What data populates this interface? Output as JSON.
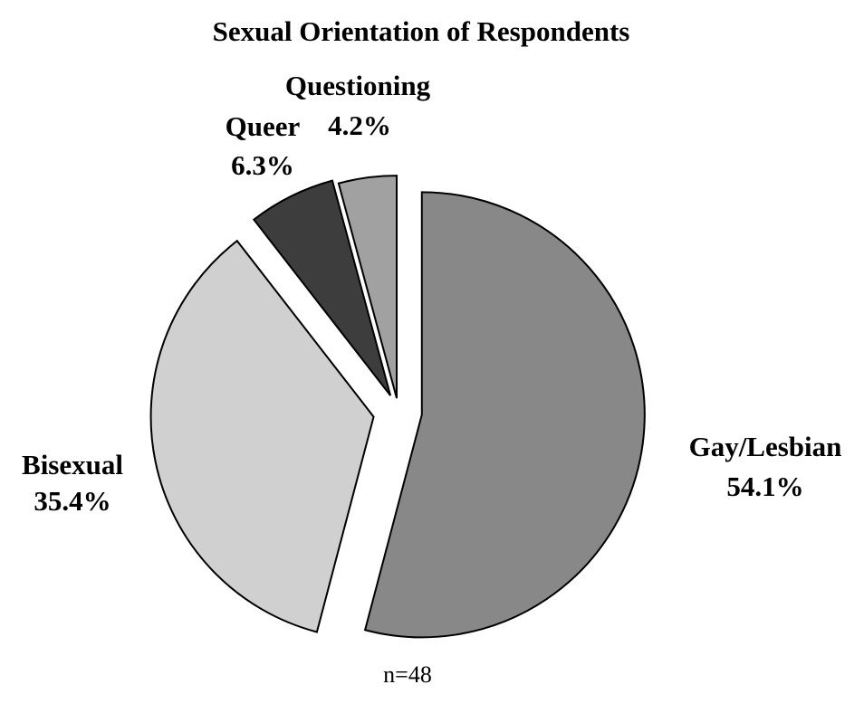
{
  "chart_data": {
    "type": "pie",
    "title": "Sexual Orientation of Respondents",
    "categories": [
      "Gay/Lesbian",
      "Bisexual",
      "Queer",
      "Questioning"
    ],
    "values": [
      54.1,
      35.4,
      6.3,
      4.2
    ],
    "value_labels": [
      "54.1%",
      "35.4%",
      "6.3%",
      "4.2%"
    ],
    "colors": [
      "#878887",
      "#cfd0cf",
      "#3c3d3c",
      "#a0a1a0"
    ],
    "note": "n=48"
  }
}
